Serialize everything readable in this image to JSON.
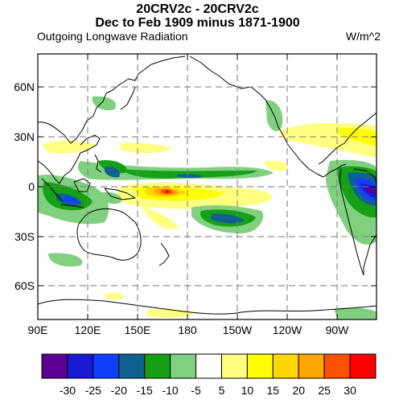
{
  "title_line1": "20CRV2c - 20CRV2c",
  "title_line2": "Dec to Feb 1909 minus 1871-1900",
  "variable": "Outgoing Longwave Radiation",
  "units": "W/m^2",
  "x_ticks": [
    "90E",
    "120E",
    "150E",
    "180",
    "150W",
    "120W",
    "90W"
  ],
  "y_ticks": [
    "60N",
    "30N",
    "0",
    "30S",
    "60S"
  ],
  "colorbar": {
    "labels": [
      "-30",
      "-25",
      "-20",
      "-15",
      "-10",
      "-5",
      "5",
      "10",
      "15",
      "20",
      "25",
      "30"
    ],
    "colors": [
      "#5a0095",
      "#1a1ad2",
      "#1040ff",
      "#106090",
      "#15a015",
      "#80d080",
      "#ffffff",
      "#ffff80",
      "#ffff00",
      "#ffd700",
      "#ffa500",
      "#ff5000",
      "#ff0000"
    ]
  },
  "chart_data": {
    "type": "heatmap",
    "title": "20CRV2c - 20CRV2c / Dec to Feb 1909 minus 1871-1900",
    "xlim": [
      "90E",
      "110W"
    ],
    "ylim": [
      "75S",
      "80N"
    ],
    "grid": true
  }
}
